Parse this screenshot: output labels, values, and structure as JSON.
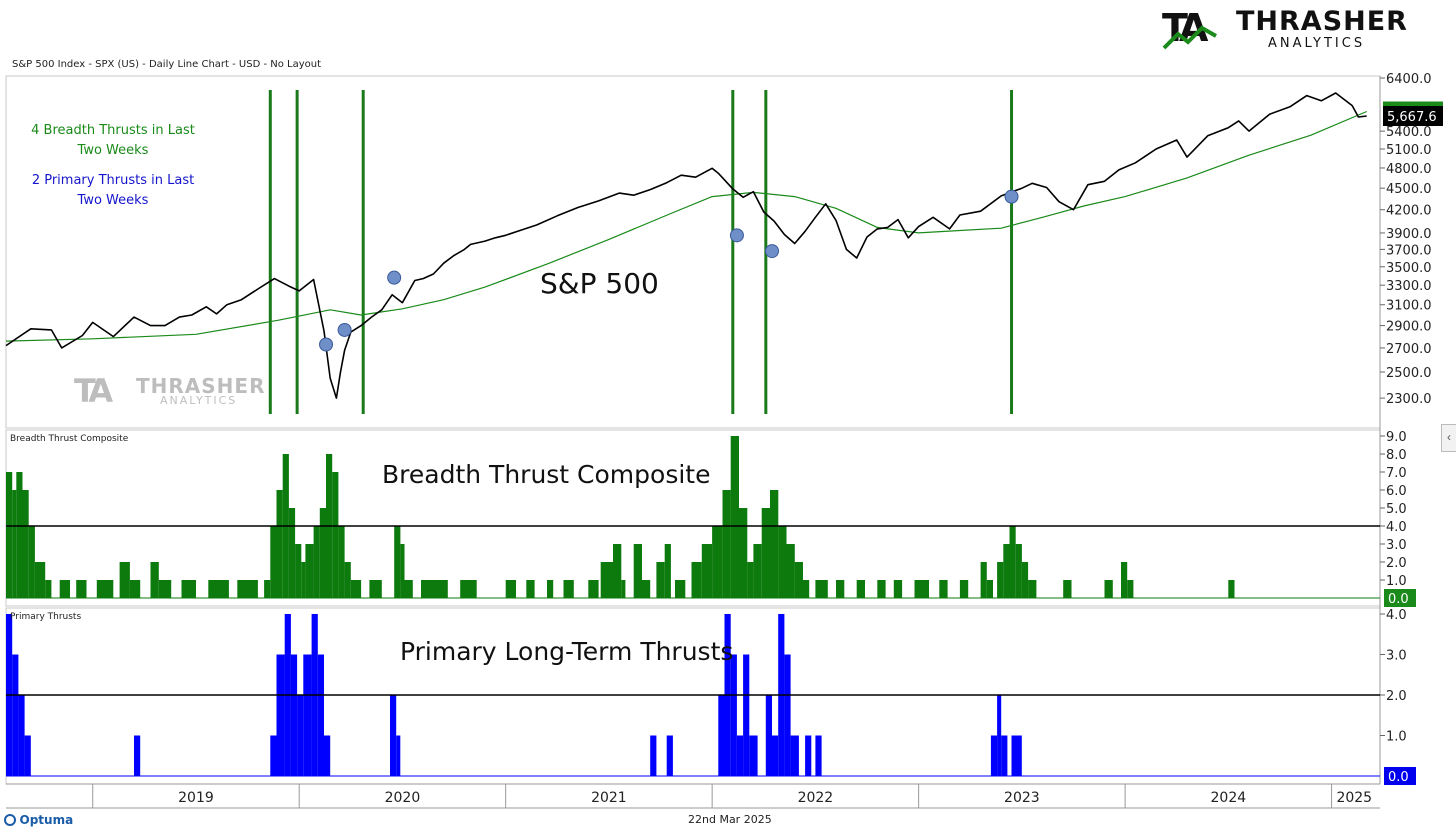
{
  "header": {
    "chart_title": "S&P 500 Index - SPX (US) - Daily Line Chart - USD - No Layout"
  },
  "logo": {
    "name": "THRASHER",
    "sub": "ANALYTICS",
    "mark": "TA"
  },
  "watermark": {
    "name": "THRASHER",
    "sub": "ANALYTICS"
  },
  "notes": {
    "breadth_line1": "4 Breadth Thrusts in Last",
    "breadth_line2": "Two Weeks",
    "primary_line1": "2 Primary Thrusts in Last",
    "primary_line2": "Two Weeks"
  },
  "panel_labels": {
    "price_big": "S&P 500",
    "breadth_small": "Breadth Thrust Composite",
    "breadth_big": "Breadth Thrust Composite",
    "primary_small": "Primary Thrusts",
    "primary_big": "Primary Long-Term Thrusts"
  },
  "footer": {
    "brand": "Optuma",
    "date": "22nd Mar 2025"
  },
  "colors": {
    "price": "#000000",
    "ma": "#1a8a1a",
    "thrust_line": "#1a7a1a",
    "breadth_fill": "#0d7a0d",
    "primary_fill": "#0000ff",
    "dot": "#6f8fc8",
    "badge_green": "#1a8a1a",
    "badge_black": "#000000",
    "badge_blue": "#0000ee"
  },
  "chart_data": [
    {
      "type": "line",
      "name": "S&P 500",
      "x_axis": {
        "range": [
          2018.58,
          2025.22
        ],
        "labels": [
          "2019",
          "2020",
          "2021",
          "2022",
          "2023",
          "2024",
          "2025"
        ]
      },
      "y_axis": {
        "scale": "log",
        "range": [
          2200,
          6400
        ],
        "ticks": [
          "6400.0",
          "5400.0",
          "5100.0",
          "4800.0",
          "4500.0",
          "4200.0",
          "3900.0",
          "3700.0",
          "3500.0",
          "3300.0",
          "3100.0",
          "2900.0",
          "2700.0",
          "2500.0",
          "2300.0"
        ],
        "tick_values": [
          6400,
          5400,
          5100,
          4800,
          4500,
          4200,
          3900,
          3700,
          3500,
          3300,
          3100,
          2900,
          2700,
          2500,
          2300
        ]
      },
      "series": [
        {
          "name": "",
          "x": [
            2018.58,
            2018.7,
            2018.8,
            2018.85,
            2018.95,
            2019.0,
            2019.1,
            2019.2,
            2019.28,
            2019.35,
            2019.42,
            2019.48,
            2019.55,
            2019.6,
            2019.65,
            2019.72,
            2019.8,
            2019.88,
            2019.95,
            2020.0,
            2020.07,
            2020.12,
            2020.15,
            2020.18,
            2020.2,
            2020.22,
            2020.25,
            2020.3,
            2020.35,
            2020.4,
            2020.45,
            2020.5,
            2020.56,
            2020.6,
            2020.65,
            2020.7,
            2020.75,
            2020.8,
            2020.83,
            2020.9,
            2020.95,
            2021.0,
            2021.08,
            2021.15,
            2021.25,
            2021.35,
            2021.45,
            2021.55,
            2021.62,
            2021.7,
            2021.78,
            2021.85,
            2021.92,
            2022.0,
            2022.03,
            2022.1,
            2022.15,
            2022.2,
            2022.25,
            2022.3,
            2022.35,
            2022.4,
            2022.45,
            2022.5,
            2022.55,
            2022.6,
            2022.65,
            2022.7,
            2022.75,
            2022.8,
            2022.85,
            2022.9,
            2022.95,
            2023.0,
            2023.07,
            2023.15,
            2023.2,
            2023.3,
            2023.4,
            2023.5,
            2023.55,
            2023.62,
            2023.68,
            2023.75,
            2023.82,
            2023.9,
            2023.97,
            2024.05,
            2024.15,
            2024.25,
            2024.3,
            2024.4,
            2024.5,
            2024.55,
            2024.6,
            2024.7,
            2024.8,
            2024.88,
            2024.95,
            2025.02,
            2025.1,
            2025.13,
            2025.17
          ],
          "y": [
            2720,
            2870,
            2860,
            2700,
            2810,
            2930,
            2800,
            2980,
            2900,
            2900,
            2980,
            3000,
            3080,
            3010,
            3100,
            3150,
            3260,
            3370,
            3290,
            3240,
            3360,
            2850,
            2450,
            2300,
            2500,
            2680,
            2840,
            2900,
            2980,
            3050,
            3200,
            3120,
            3350,
            3370,
            3420,
            3540,
            3630,
            3700,
            3760,
            3800,
            3840,
            3870,
            3940,
            4000,
            4120,
            4230,
            4320,
            4430,
            4400,
            4480,
            4580,
            4690,
            4660,
            4795,
            4720,
            4490,
            4370,
            4450,
            4170,
            4050,
            3880,
            3770,
            3920,
            4100,
            4280,
            4060,
            3700,
            3600,
            3850,
            3950,
            3970,
            4070,
            3840,
            3980,
            4100,
            3950,
            4130,
            4180,
            4390,
            4500,
            4570,
            4510,
            4310,
            4200,
            4550,
            4600,
            4770,
            4880,
            5100,
            5250,
            4970,
            5320,
            5460,
            5580,
            5400,
            5700,
            5840,
            6050,
            5950,
            6100,
            5860,
            5650,
            5667.6
          ]
        },
        {
          "name": "",
          "x": [
            2018.58,
            2019.0,
            2019.5,
            2019.9,
            2020.15,
            2020.3,
            2020.5,
            2020.7,
            2020.9,
            2021.2,
            2021.5,
            2021.8,
            2022.0,
            2022.2,
            2022.4,
            2022.6,
            2022.8,
            2023.0,
            2023.2,
            2023.4,
            2023.6,
            2023.8,
            2024.0,
            2024.3,
            2024.6,
            2024.9,
            2025.17
          ],
          "y": [
            2760,
            2780,
            2820,
            2950,
            3050,
            3000,
            3060,
            3150,
            3280,
            3530,
            3820,
            4150,
            4380,
            4440,
            4380,
            4220,
            3970,
            3900,
            3930,
            3960,
            4100,
            4250,
            4380,
            4650,
            5000,
            5330,
            5749.9
          ]
        }
      ],
      "thrust_lines_x": [
        2019.86,
        2019.99,
        2020.31,
        2022.1,
        2022.26,
        2023.45
      ],
      "breadth_thrust_points": [
        {
          "x": 2020.13,
          "y": 2730
        },
        {
          "x": 2020.22,
          "y": 2860
        },
        {
          "x": 2020.46,
          "y": 3380
        },
        {
          "x": 2022.12,
          "y": 3870
        },
        {
          "x": 2022.29,
          "y": 3680
        },
        {
          "x": 2023.45,
          "y": 4380
        }
      ],
      "last_values": {
        "ma": "5,749.9",
        "price": "5,667.6"
      }
    },
    {
      "type": "area",
      "name": "Breadth Thrust Composite",
      "y_axis": {
        "range": [
          0,
          9
        ],
        "ticks": [
          "9.0",
          "8.0",
          "7.0",
          "6.0",
          "5.0",
          "4.0",
          "3.0",
          "2.0",
          "1.0"
        ],
        "tick_values": [
          9,
          8,
          7,
          6,
          5,
          4,
          3,
          2,
          1
        ]
      },
      "threshold": 4,
      "last_value": "0.0",
      "segments": [
        [
          2018.58,
          2018.61,
          7
        ],
        [
          2018.61,
          2018.63,
          6
        ],
        [
          2018.63,
          2018.66,
          7
        ],
        [
          2018.66,
          2018.69,
          6
        ],
        [
          2018.69,
          2018.72,
          4
        ],
        [
          2018.72,
          2018.77,
          2
        ],
        [
          2018.77,
          2018.8,
          1
        ],
        [
          2018.84,
          2018.89,
          1
        ],
        [
          2018.92,
          2018.97,
          1
        ],
        [
          2019.02,
          2019.1,
          1
        ],
        [
          2019.13,
          2019.18,
          2
        ],
        [
          2019.18,
          2019.23,
          1
        ],
        [
          2019.28,
          2019.32,
          2
        ],
        [
          2019.32,
          2019.38,
          1
        ],
        [
          2019.43,
          2019.5,
          1
        ],
        [
          2019.56,
          2019.66,
          1
        ],
        [
          2019.7,
          2019.8,
          1
        ],
        [
          2019.83,
          2019.86,
          1
        ],
        [
          2019.86,
          2019.89,
          4
        ],
        [
          2019.89,
          2019.92,
          6
        ],
        [
          2019.92,
          2019.95,
          8
        ],
        [
          2019.95,
          2019.98,
          5
        ],
        [
          2019.98,
          2020.01,
          3
        ],
        [
          2020.01,
          2020.03,
          2
        ],
        [
          2020.03,
          2020.07,
          3
        ],
        [
          2020.07,
          2020.1,
          4
        ],
        [
          2020.1,
          2020.13,
          5
        ],
        [
          2020.13,
          2020.16,
          8
        ],
        [
          2020.16,
          2020.19,
          7
        ],
        [
          2020.19,
          2020.22,
          4
        ],
        [
          2020.22,
          2020.25,
          2
        ],
        [
          2020.25,
          2020.3,
          1
        ],
        [
          2020.34,
          2020.4,
          1
        ],
        [
          2020.46,
          2020.49,
          4
        ],
        [
          2020.49,
          2020.51,
          3
        ],
        [
          2020.51,
          2020.55,
          1
        ],
        [
          2020.59,
          2020.72,
          1
        ],
        [
          2020.78,
          2020.86,
          1
        ],
        [
          2021.0,
          2021.05,
          1
        ],
        [
          2021.1,
          2021.14,
          1
        ],
        [
          2021.2,
          2021.23,
          1
        ],
        [
          2021.28,
          2021.33,
          1
        ],
        [
          2021.4,
          2021.45,
          1
        ],
        [
          2021.46,
          2021.52,
          2
        ],
        [
          2021.52,
          2021.56,
          3
        ],
        [
          2021.56,
          2021.58,
          1
        ],
        [
          2021.62,
          2021.66,
          3
        ],
        [
          2021.66,
          2021.7,
          1
        ],
        [
          2021.73,
          2021.77,
          2
        ],
        [
          2021.77,
          2021.8,
          3
        ],
        [
          2021.82,
          2021.87,
          1
        ],
        [
          2021.9,
          2021.95,
          2
        ],
        [
          2021.95,
          2022.0,
          3
        ],
        [
          2022.0,
          2022.05,
          4
        ],
        [
          2022.05,
          2022.09,
          6
        ],
        [
          2022.09,
          2022.13,
          9
        ],
        [
          2022.13,
          2022.17,
          5
        ],
        [
          2022.17,
          2022.2,
          2
        ],
        [
          2022.2,
          2022.24,
          3
        ],
        [
          2022.24,
          2022.28,
          5
        ],
        [
          2022.28,
          2022.32,
          6
        ],
        [
          2022.32,
          2022.36,
          4
        ],
        [
          2022.36,
          2022.4,
          3
        ],
        [
          2022.4,
          2022.44,
          2
        ],
        [
          2022.44,
          2022.47,
          1
        ],
        [
          2022.5,
          2022.56,
          1
        ],
        [
          2022.6,
          2022.64,
          1
        ],
        [
          2022.7,
          2022.74,
          1
        ],
        [
          2022.8,
          2022.84,
          1
        ],
        [
          2022.88,
          2022.92,
          1
        ],
        [
          2022.98,
          2023.05,
          1
        ],
        [
          2023.1,
          2023.14,
          1
        ],
        [
          2023.2,
          2023.24,
          1
        ],
        [
          2023.3,
          2023.33,
          2
        ],
        [
          2023.33,
          2023.36,
          1
        ],
        [
          2023.38,
          2023.41,
          2
        ],
        [
          2023.41,
          2023.44,
          3
        ],
        [
          2023.44,
          2023.47,
          4
        ],
        [
          2023.47,
          2023.5,
          3
        ],
        [
          2023.5,
          2023.53,
          2
        ],
        [
          2023.53,
          2023.57,
          1
        ],
        [
          2023.7,
          2023.74,
          1
        ],
        [
          2023.9,
          2023.94,
          1
        ],
        [
          2023.98,
          2024.01,
          2
        ],
        [
          2024.01,
          2024.04,
          1
        ],
        [
          2024.5,
          2024.53,
          1
        ]
      ]
    },
    {
      "type": "area",
      "name": "Primary Thrusts",
      "y_axis": {
        "range": [
          0,
          4
        ],
        "ticks": [
          "4.0",
          "3.0",
          "2.0",
          "1.0"
        ],
        "tick_values": [
          4,
          3,
          2,
          1
        ]
      },
      "threshold": 2,
      "last_value": "0.0",
      "segments": [
        [
          2018.58,
          2018.61,
          4
        ],
        [
          2018.61,
          2018.64,
          3
        ],
        [
          2018.64,
          2018.67,
          2
        ],
        [
          2018.67,
          2018.7,
          1
        ],
        [
          2019.2,
          2019.23,
          1
        ],
        [
          2019.86,
          2019.89,
          1
        ],
        [
          2019.89,
          2019.93,
          3
        ],
        [
          2019.93,
          2019.96,
          4
        ],
        [
          2019.96,
          2019.99,
          3
        ],
        [
          2019.99,
          2020.02,
          2
        ],
        [
          2020.02,
          2020.06,
          3
        ],
        [
          2020.06,
          2020.09,
          4
        ],
        [
          2020.09,
          2020.12,
          3
        ],
        [
          2020.12,
          2020.15,
          1
        ],
        [
          2020.44,
          2020.47,
          2
        ],
        [
          2020.47,
          2020.49,
          1
        ],
        [
          2021.7,
          2021.73,
          1
        ],
        [
          2021.78,
          2021.81,
          1
        ],
        [
          2022.03,
          2022.06,
          2
        ],
        [
          2022.06,
          2022.09,
          4
        ],
        [
          2022.09,
          2022.12,
          3
        ],
        [
          2022.12,
          2022.15,
          1
        ],
        [
          2022.15,
          2022.18,
          3
        ],
        [
          2022.18,
          2022.22,
          1
        ],
        [
          2022.26,
          2022.29,
          2
        ],
        [
          2022.29,
          2022.32,
          1
        ],
        [
          2022.32,
          2022.35,
          4
        ],
        [
          2022.35,
          2022.38,
          3
        ],
        [
          2022.38,
          2022.42,
          1
        ],
        [
          2022.45,
          2022.48,
          1
        ],
        [
          2022.5,
          2022.53,
          1
        ],
        [
          2023.35,
          2023.38,
          1
        ],
        [
          2023.38,
          2023.4,
          2
        ],
        [
          2023.4,
          2023.43,
          1
        ],
        [
          2023.45,
          2023.5,
          1
        ]
      ]
    }
  ]
}
